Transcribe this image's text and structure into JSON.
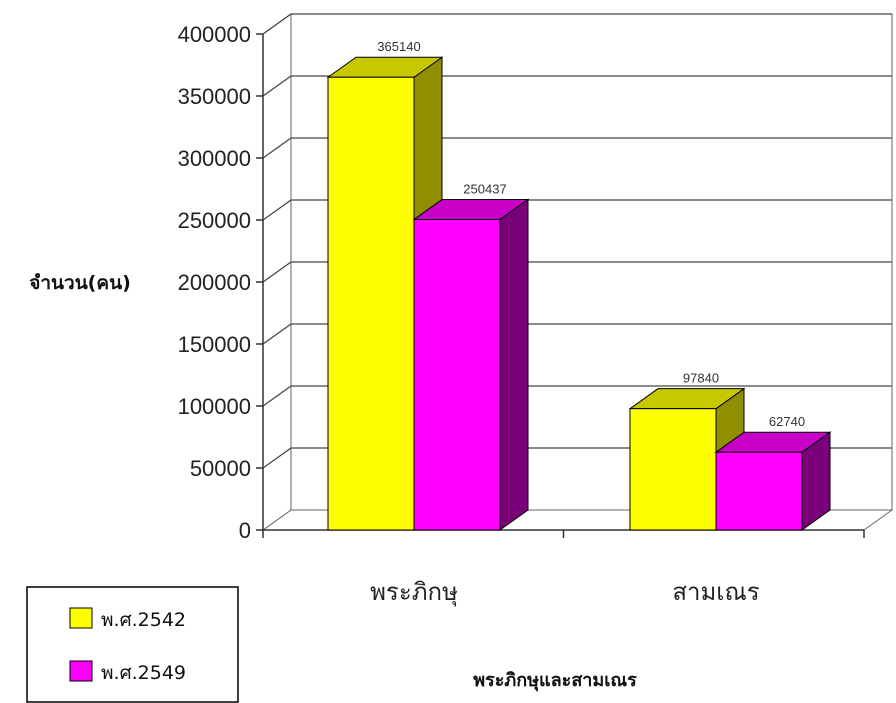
{
  "chart_data": {
    "type": "bar",
    "categories": [
      "พระภิกษุ",
      "สามเณร"
    ],
    "series": [
      {
        "name": "พ.ศ.2542",
        "values": [
          365140,
          97840
        ],
        "color": "#ffff00"
      },
      {
        "name": "พ.ศ.2549",
        "values": [
          250437,
          62740
        ],
        "color": "#ff00ff"
      }
    ],
    "title": "",
    "xlabel": "พระภิกษุและสามเณร",
    "ylabel": "จำนวน(คน)",
    "ylim": [
      0,
      400000
    ],
    "yticks": [
      0,
      50000,
      100000,
      150000,
      200000,
      250000,
      300000,
      350000,
      400000
    ],
    "grid": true,
    "legend_position": "bottom-left",
    "style": "3d-column"
  }
}
